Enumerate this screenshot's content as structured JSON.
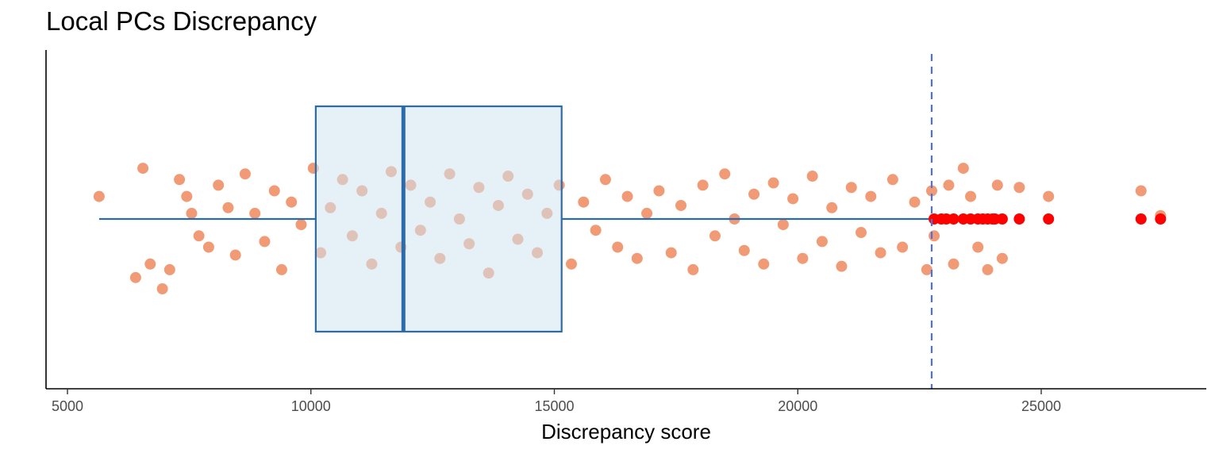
{
  "chart_data": {
    "type": "scatter",
    "title": "Local PCs Discrepancy",
    "xlabel": "Discrepancy score",
    "ylabel": "",
    "xlim": [
      4600,
      28400
    ],
    "x_ticks": [
      "5000",
      "10000",
      "15000",
      "20000",
      "25000"
    ],
    "grid": false,
    "legend": "none",
    "colors": {
      "points": "#EE8A5E",
      "outliers": "#FF0000",
      "box_fill": "#D0E4F0",
      "box_line": "#2B6BAB",
      "threshold_line": "#4F6FD9",
      "axis": "#000000"
    },
    "boxplot": {
      "whisker_low": 5650,
      "q1": 10100,
      "median": 11900,
      "q3": 15150,
      "whisker_high": 22750
    },
    "threshold": 22750,
    "outliers": [
      22800,
      22950,
      23050,
      23200,
      23400,
      23550,
      23700,
      23800,
      23900,
      24000,
      24050,
      24200,
      24550,
      25150,
      27050,
      27450
    ],
    "points": [
      [
        6550,
        0.45
      ],
      [
        5650,
        0.2
      ],
      [
        6700,
        -0.4
      ],
      [
        6400,
        -0.52
      ],
      [
        6950,
        -0.62
      ],
      [
        7100,
        -0.45
      ],
      [
        7300,
        0.35
      ],
      [
        7450,
        0.2
      ],
      [
        7550,
        0.05
      ],
      [
        7700,
        -0.15
      ],
      [
        7900,
        -0.25
      ],
      [
        8100,
        0.3
      ],
      [
        8300,
        0.1
      ],
      [
        8450,
        -0.32
      ],
      [
        8650,
        0.4
      ],
      [
        8850,
        0.05
      ],
      [
        9050,
        -0.2
      ],
      [
        9250,
        0.25
      ],
      [
        9400,
        -0.45
      ],
      [
        9600,
        0.15
      ],
      [
        9800,
        -0.05
      ],
      [
        10050,
        0.45
      ],
      [
        10200,
        -0.3
      ],
      [
        10400,
        0.1
      ],
      [
        10650,
        0.35
      ],
      [
        10850,
        -0.15
      ],
      [
        11050,
        0.25
      ],
      [
        11250,
        -0.4
      ],
      [
        11450,
        0.05
      ],
      [
        11650,
        0.42
      ],
      [
        11850,
        -0.25
      ],
      [
        12050,
        0.3
      ],
      [
        12250,
        -0.1
      ],
      [
        12450,
        0.15
      ],
      [
        12650,
        -0.35
      ],
      [
        12850,
        0.4
      ],
      [
        13050,
        0.0
      ],
      [
        13250,
        -0.22
      ],
      [
        13450,
        0.28
      ],
      [
        13650,
        -0.48
      ],
      [
        13850,
        0.12
      ],
      [
        14050,
        0.38
      ],
      [
        14250,
        -0.18
      ],
      [
        14450,
        0.22
      ],
      [
        14650,
        -0.3
      ],
      [
        14850,
        0.05
      ],
      [
        15100,
        0.3
      ],
      [
        15350,
        -0.4
      ],
      [
        15600,
        0.15
      ],
      [
        15850,
        -0.1
      ],
      [
        16050,
        0.35
      ],
      [
        16300,
        -0.25
      ],
      [
        16500,
        0.2
      ],
      [
        16700,
        -0.35
      ],
      [
        16900,
        0.05
      ],
      [
        17150,
        0.25
      ],
      [
        17400,
        -0.3
      ],
      [
        17600,
        0.12
      ],
      [
        17850,
        -0.45
      ],
      [
        18050,
        0.3
      ],
      [
        18300,
        -0.15
      ],
      [
        18500,
        0.4
      ],
      [
        18700,
        0.0
      ],
      [
        18900,
        -0.28
      ],
      [
        19100,
        0.22
      ],
      [
        19300,
        -0.4
      ],
      [
        19500,
        0.32
      ],
      [
        19700,
        -0.05
      ],
      [
        19900,
        0.18
      ],
      [
        20100,
        -0.35
      ],
      [
        20300,
        0.38
      ],
      [
        20500,
        -0.2
      ],
      [
        20700,
        0.1
      ],
      [
        20900,
        -0.42
      ],
      [
        21100,
        0.28
      ],
      [
        21300,
        -0.12
      ],
      [
        21500,
        0.2
      ],
      [
        21700,
        -0.3
      ],
      [
        21950,
        0.35
      ],
      [
        22150,
        -0.25
      ],
      [
        22400,
        0.15
      ],
      [
        22650,
        -0.45
      ],
      [
        22750,
        0.25
      ],
      [
        22800,
        -0.15
      ],
      [
        23100,
        0.3
      ],
      [
        23200,
        -0.4
      ],
      [
        23400,
        0.45
      ],
      [
        23550,
        0.2
      ],
      [
        23700,
        -0.25
      ],
      [
        23900,
        -0.45
      ],
      [
        24100,
        0.3
      ],
      [
        24200,
        -0.35
      ],
      [
        24550,
        0.28
      ],
      [
        25150,
        0.2
      ],
      [
        27050,
        0.25
      ],
      [
        27450,
        0.03
      ]
    ]
  }
}
